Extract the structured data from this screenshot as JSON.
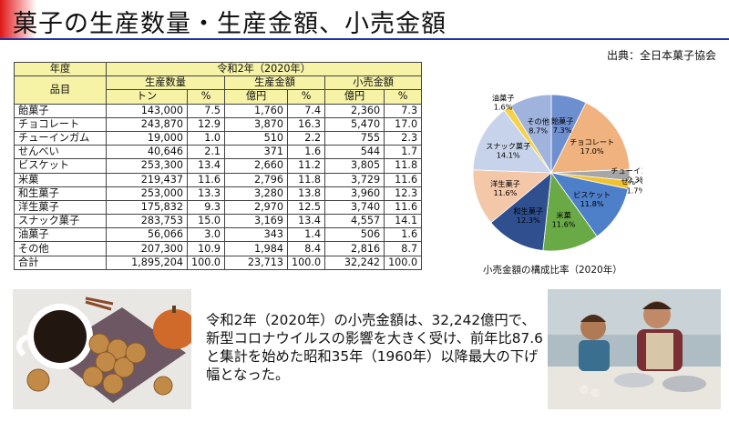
{
  "title": "菓子の生産数量・生産金額、小売金額",
  "source": "出典：全日本菓子協会",
  "table": {
    "h_year": "年度",
    "h_item": "品目",
    "h_period": "令和2年（2020年）",
    "h_volume": "生産数量",
    "h_value": "生産金額",
    "h_retail": "小売金額",
    "u_ton": "トン",
    "u_pct": "%",
    "u_oku": "億円",
    "rows": [
      {
        "name": "飴菓子",
        "vol": "143,000",
        "vp": "7.5",
        "val": "1,760",
        "valp": "7.4",
        "ret": "2,360",
        "retp": "7.3"
      },
      {
        "name": "チョコレート",
        "vol": "243,870",
        "vp": "12.9",
        "val": "3,870",
        "valp": "16.3",
        "ret": "5,470",
        "retp": "17.0"
      },
      {
        "name": "チューインガム",
        "vol": "19,000",
        "vp": "1.0",
        "val": "510",
        "valp": "2.2",
        "ret": "755",
        "retp": "2.3"
      },
      {
        "name": "せんべい",
        "vol": "40,646",
        "vp": "2.1",
        "val": "371",
        "valp": "1.6",
        "ret": "544",
        "retp": "1.7"
      },
      {
        "name": "ビスケット",
        "vol": "253,300",
        "vp": "13.4",
        "val": "2,660",
        "valp": "11.2",
        "ret": "3,805",
        "retp": "11.8"
      },
      {
        "name": "米菓",
        "vol": "219,437",
        "vp": "11.6",
        "val": "2,796",
        "valp": "11.8",
        "ret": "3,729",
        "retp": "11.6"
      },
      {
        "name": "和生菓子",
        "vol": "253,000",
        "vp": "13.3",
        "val": "3,280",
        "valp": "13.8",
        "ret": "3,960",
        "retp": "12.3"
      },
      {
        "name": "洋生菓子",
        "vol": "175,832",
        "vp": "9.3",
        "val": "2,970",
        "valp": "12.5",
        "ret": "3,740",
        "retp": "11.6"
      },
      {
        "name": "スナック菓子",
        "vol": "283,753",
        "vp": "15.0",
        "val": "3,169",
        "valp": "13.4",
        "ret": "4,557",
        "retp": "14.1"
      },
      {
        "name": "油菓子",
        "vol": "56,066",
        "vp": "3.0",
        "val": "343",
        "valp": "1.4",
        "ret": "506",
        "retp": "1.6"
      },
      {
        "name": "その他",
        "vol": "207,300",
        "vp": "10.9",
        "val": "1,984",
        "valp": "8.4",
        "ret": "2,816",
        "retp": "8.7"
      },
      {
        "name": "合計",
        "vol": "1,895,204",
        "vp": "100.0",
        "val": "23,713",
        "valp": "100.0",
        "ret": "32,242",
        "retp": "100.0"
      }
    ]
  },
  "chart_data": {
    "type": "pie",
    "title": "小売金額の構成比率（2020年）",
    "slices": [
      {
        "label": "飴菓子",
        "pct_label": "7.3%",
        "value": 7.3,
        "color": "#6d8ecf"
      },
      {
        "label": "チョコレート",
        "pct_label": "17.0%",
        "value": 17.0,
        "color": "#f0b27f"
      },
      {
        "label": "チューインガム",
        "pct_label": "2.3%",
        "value": 2.3,
        "color": "#a6a6a6"
      },
      {
        "label": "せんべい",
        "pct_label": "1.7%",
        "value": 1.7,
        "color": "#f2c22e"
      },
      {
        "label": "ビスケット",
        "pct_label": "11.8%",
        "value": 11.8,
        "color": "#4e7fc9"
      },
      {
        "label": "米菓",
        "pct_label": "11.6%",
        "value": 11.6,
        "color": "#6aaa46"
      },
      {
        "label": "和生菓子",
        "pct_label": "12.3%",
        "value": 12.3,
        "color": "#2f4f8f"
      },
      {
        "label": "洋生菓子",
        "pct_label": "11.6%",
        "value": 11.6,
        "color": "#f3c7a8"
      },
      {
        "label": "スナック菓子",
        "pct_label": "14.1%",
        "value": 14.1,
        "color": "#c7d3ea"
      },
      {
        "label": "油菓子",
        "pct_label": "1.6%",
        "value": 1.6,
        "color": "#f5d24a"
      },
      {
        "label": "その他",
        "pct_label": "8.7%",
        "value": 8.7,
        "color": "#9fb3dd"
      }
    ]
  },
  "summary": "令和2年（2020年）の小売金額は、32,242億円で、新型コロナウイルスの影響を大きく受け、前年比87.6と集計を始めた昭和35年（1960年）以降最大の下げ幅となった。"
}
